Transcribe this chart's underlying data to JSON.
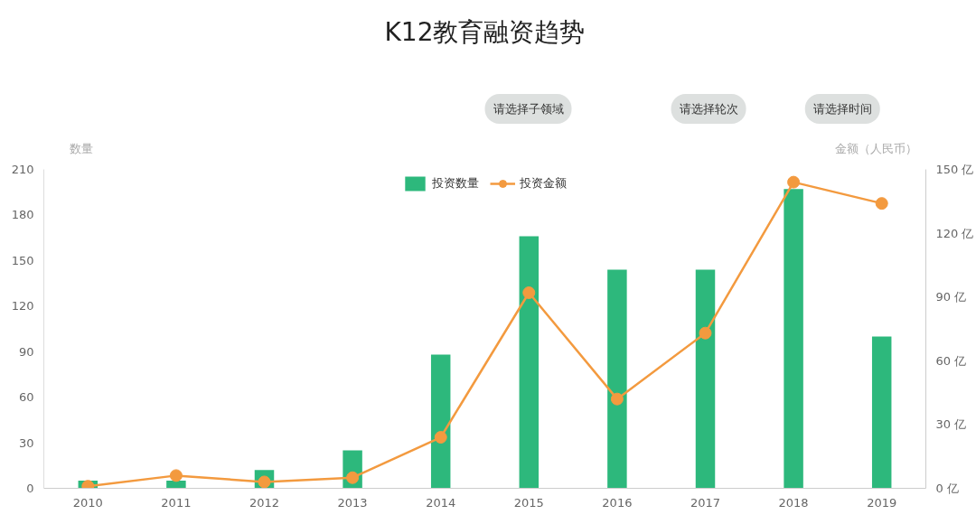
{
  "chart_data": {
    "type": "bar",
    "title": "K12教育融资趋势",
    "annotations": [
      "请选择子领域",
      "请选择轮次",
      "请选择时间"
    ],
    "ylabel": "数量",
    "y2label": "金额（人民币）",
    "categories": [
      "2010",
      "2011",
      "2012",
      "2013",
      "2014",
      "2015",
      "2016",
      "2017",
      "2018",
      "2019"
    ],
    "series": [
      {
        "name": "投资数量",
        "color": "#2db87c",
        "values": [
          5,
          5,
          12,
          25,
          88,
          166,
          144,
          144,
          197,
          100
        ]
      },
      {
        "name": "投资金额",
        "type": "line",
        "axis": "y2",
        "color": "#f39a3f",
        "marker": "circle",
        "values": [
          1,
          6,
          3,
          5,
          24,
          92,
          42,
          73,
          144,
          134
        ]
      }
    ],
    "ylim": [
      0,
      210
    ],
    "yticks": [
      0,
      30,
      60,
      90,
      120,
      150,
      180,
      210
    ],
    "y2lim": [
      0,
      150
    ],
    "y2ticks": [
      {
        "value": 0,
        "label": "0 亿"
      },
      {
        "value": 30,
        "label": "30 亿"
      },
      {
        "value": 60,
        "label": "60 亿"
      },
      {
        "value": 90,
        "label": "90 亿"
      },
      {
        "value": 120,
        "label": "120 亿"
      },
      {
        "value": 150,
        "label": "150 亿"
      }
    ],
    "grid": false,
    "legend": "top"
  }
}
